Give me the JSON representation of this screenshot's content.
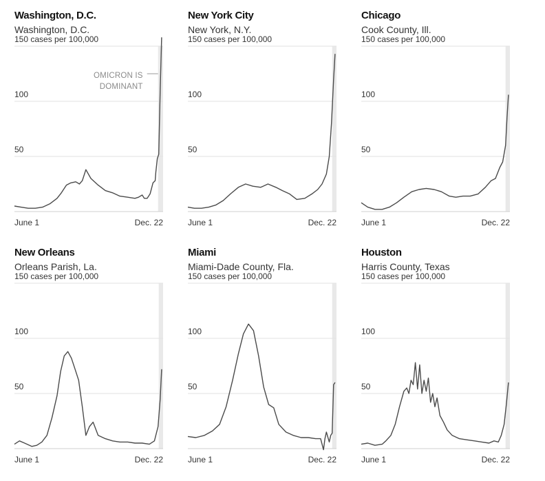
{
  "chart_data": [
    {
      "type": "line",
      "title": "Washington, D.C.",
      "subtitle": "Washington, D.C.",
      "y_unit": "cases per 100,000",
      "yticks": [
        {
          "value": 150,
          "label": "150 cases per 100,000"
        },
        {
          "value": 100,
          "label": "100"
        },
        {
          "value": 50,
          "label": "50"
        }
      ],
      "ylim": [
        0,
        160
      ],
      "xlim": [
        "2021-06-01",
        "2021-12-24"
      ],
      "xticks": [
        {
          "value": "2021-06-01",
          "label": "June 1"
        },
        {
          "value": "2021-12-22",
          "label": "Dec. 22"
        }
      ],
      "shaded_from": "2021-12-17",
      "annotation": {
        "lines": [
          "OMICRON IS",
          "DOMINANT"
        ]
      },
      "series": [
        {
          "x": [
            "2021-06-01",
            "2021-06-10",
            "2021-06-20",
            "2021-06-30",
            "2021-07-10",
            "2021-07-20",
            "2021-07-30",
            "2021-08-05",
            "2021-08-12",
            "2021-08-18",
            "2021-08-25",
            "2021-08-30",
            "2021-09-03",
            "2021-09-08",
            "2021-09-15",
            "2021-09-25",
            "2021-10-05",
            "2021-10-15",
            "2021-10-25",
            "2021-11-05",
            "2021-11-15",
            "2021-11-20",
            "2021-11-25",
            "2021-11-28",
            "2021-12-02",
            "2021-12-06",
            "2021-12-10",
            "2021-12-13",
            "2021-12-14",
            "2021-12-16",
            "2021-12-18",
            "2021-12-20",
            "2021-12-22"
          ],
          "y": [
            5,
            4,
            3,
            3,
            4,
            7,
            12,
            17,
            24,
            26,
            27,
            25,
            28,
            38,
            30,
            24,
            19,
            17,
            14,
            13,
            12,
            13,
            15,
            12,
            12,
            16,
            26,
            28,
            36,
            48,
            52,
            110,
            158
          ]
        }
      ]
    },
    {
      "type": "line",
      "title": "New York City",
      "subtitle": "New York, N.Y.",
      "y_unit": "cases per 100,000",
      "yticks": [
        {
          "value": 150,
          "label": "150 cases per 100,000"
        },
        {
          "value": 100,
          "label": "100"
        },
        {
          "value": 50,
          "label": "50"
        }
      ],
      "ylim": [
        0,
        160
      ],
      "xlim": [
        "2021-06-01",
        "2021-12-24"
      ],
      "xticks": [
        {
          "value": "2021-06-01",
          "label": "June 1"
        },
        {
          "value": "2021-12-22",
          "label": "Dec. 22"
        }
      ],
      "shaded_from": "2021-12-18",
      "series": [
        {
          "x": [
            "2021-06-01",
            "2021-06-10",
            "2021-06-20",
            "2021-06-30",
            "2021-07-10",
            "2021-07-20",
            "2021-07-30",
            "2021-08-10",
            "2021-08-20",
            "2021-08-30",
            "2021-09-10",
            "2021-09-20",
            "2021-10-01",
            "2021-10-10",
            "2021-10-20",
            "2021-10-30",
            "2021-11-10",
            "2021-11-20",
            "2021-11-28",
            "2021-12-04",
            "2021-12-10",
            "2021-12-14",
            "2021-12-17",
            "2021-12-20",
            "2021-12-22"
          ],
          "y": [
            4,
            3,
            3,
            4,
            6,
            10,
            16,
            22,
            25,
            23,
            22,
            25,
            22,
            19,
            16,
            11,
            12,
            16,
            20,
            25,
            34,
            50,
            80,
            120,
            143
          ]
        }
      ]
    },
    {
      "type": "line",
      "title": "Chicago",
      "subtitle": "Cook County, Ill.",
      "y_unit": "cases per 100,000",
      "yticks": [
        {
          "value": 150,
          "label": "150 cases per 100,000"
        },
        {
          "value": 100,
          "label": "100"
        },
        {
          "value": 50,
          "label": "50"
        }
      ],
      "ylim": [
        0,
        160
      ],
      "xlim": [
        "2021-06-01",
        "2021-12-24"
      ],
      "xticks": [
        {
          "value": "2021-06-01",
          "label": "June 1"
        },
        {
          "value": "2021-12-22",
          "label": "Dec. 22"
        }
      ],
      "shaded_from": "2021-12-18",
      "series": [
        {
          "x": [
            "2021-06-01",
            "2021-06-10",
            "2021-06-20",
            "2021-06-30",
            "2021-07-10",
            "2021-07-20",
            "2021-07-30",
            "2021-08-10",
            "2021-08-20",
            "2021-08-30",
            "2021-09-10",
            "2021-09-20",
            "2021-10-01",
            "2021-10-10",
            "2021-10-20",
            "2021-10-30",
            "2021-11-10",
            "2021-11-20",
            "2021-11-28",
            "2021-12-04",
            "2021-12-10",
            "2021-12-14",
            "2021-12-18",
            "2021-12-20",
            "2021-12-22"
          ],
          "y": [
            8,
            4,
            2,
            2,
            4,
            8,
            13,
            18,
            20,
            21,
            20,
            18,
            14,
            13,
            14,
            14,
            16,
            22,
            28,
            30,
            40,
            45,
            60,
            85,
            106
          ]
        }
      ]
    },
    {
      "type": "line",
      "title": "New Orleans",
      "subtitle": "Orleans Parish, La.",
      "y_unit": "cases per 100,000",
      "yticks": [
        {
          "value": 150,
          "label": "150 cases per 100,000"
        },
        {
          "value": 100,
          "label": "100"
        },
        {
          "value": 50,
          "label": "50"
        }
      ],
      "ylim": [
        0,
        160
      ],
      "xlim": [
        "2021-06-01",
        "2021-12-24"
      ],
      "xticks": [
        {
          "value": "2021-06-01",
          "label": "June 1"
        },
        {
          "value": "2021-12-22",
          "label": "Dec. 22"
        }
      ],
      "shaded_from": "2021-12-18",
      "series": [
        {
          "x": [
            "2021-06-01",
            "2021-06-08",
            "2021-06-15",
            "2021-06-25",
            "2021-07-02",
            "2021-07-09",
            "2021-07-16",
            "2021-07-23",
            "2021-07-30",
            "2021-08-04",
            "2021-08-09",
            "2021-08-14",
            "2021-08-19",
            "2021-08-24",
            "2021-08-29",
            "2021-09-03",
            "2021-09-08",
            "2021-09-13",
            "2021-09-18",
            "2021-09-25",
            "2021-10-05",
            "2021-10-15",
            "2021-10-25",
            "2021-11-05",
            "2021-11-15",
            "2021-11-25",
            "2021-12-05",
            "2021-12-12",
            "2021-12-17",
            "2021-12-20",
            "2021-12-22"
          ],
          "y": [
            4,
            7,
            5,
            2,
            3,
            6,
            12,
            28,
            48,
            70,
            84,
            88,
            82,
            72,
            62,
            38,
            12,
            20,
            24,
            12,
            9,
            7,
            6,
            6,
            5,
            5,
            4,
            7,
            20,
            45,
            72
          ]
        }
      ]
    },
    {
      "type": "line",
      "title": "Miami",
      "subtitle": "Miami-Dade County, Fla.",
      "y_unit": "cases per 100,000",
      "yticks": [
        {
          "value": 150,
          "label": "150 cases per 100,000"
        },
        {
          "value": 100,
          "label": "100"
        },
        {
          "value": 50,
          "label": "50"
        }
      ],
      "ylim": [
        0,
        160
      ],
      "xlim": [
        "2021-06-01",
        "2021-12-24"
      ],
      "xticks": [
        {
          "value": "2021-06-01",
          "label": "June 1"
        },
        {
          "value": "2021-12-22",
          "label": "Dec. 22"
        }
      ],
      "shaded_from": "2021-12-18",
      "series": [
        {
          "x": [
            "2021-06-01",
            "2021-06-12",
            "2021-06-24",
            "2021-07-05",
            "2021-07-15",
            "2021-07-24",
            "2021-08-02",
            "2021-08-10",
            "2021-08-17",
            "2021-08-24",
            "2021-08-31",
            "2021-09-07",
            "2021-09-14",
            "2021-09-21",
            "2021-09-28",
            "2021-10-05",
            "2021-10-15",
            "2021-10-25",
            "2021-11-05",
            "2021-11-15",
            "2021-11-25",
            "2021-12-02",
            "2021-12-06",
            "2021-12-08",
            "2021-12-10",
            "2021-12-14",
            "2021-12-16",
            "2021-12-18",
            "2021-12-20",
            "2021-12-22"
          ],
          "y": [
            11,
            10,
            12,
            16,
            22,
            38,
            62,
            86,
            104,
            113,
            107,
            84,
            56,
            40,
            37,
            22,
            15,
            12,
            10,
            10,
            9,
            9,
            -1,
            9,
            15,
            6,
            12,
            14,
            58,
            60
          ]
        }
      ]
    },
    {
      "type": "line",
      "title": "Houston",
      "subtitle": "Harris County, Texas",
      "y_unit": "cases per 100,000",
      "yticks": [
        {
          "value": 150,
          "label": "150 cases per 100,000"
        },
        {
          "value": 100,
          "label": "100"
        },
        {
          "value": 50,
          "label": "50"
        }
      ],
      "ylim": [
        0,
        160
      ],
      "xlim": [
        "2021-06-01",
        "2021-12-24"
      ],
      "xticks": [
        {
          "value": "2021-06-01",
          "label": "June 1"
        },
        {
          "value": "2021-12-22",
          "label": "Dec. 22"
        }
      ],
      "shaded_from": "2021-12-18",
      "series": [
        {
          "x": [
            "2021-06-01",
            "2021-06-10",
            "2021-06-20",
            "2021-06-30",
            "2021-07-05",
            "2021-07-12",
            "2021-07-18",
            "2021-07-24",
            "2021-07-30",
            "2021-08-03",
            "2021-08-06",
            "2021-08-09",
            "2021-08-12",
            "2021-08-15",
            "2021-08-18",
            "2021-08-21",
            "2021-08-24",
            "2021-08-27",
            "2021-08-30",
            "2021-09-02",
            "2021-09-05",
            "2021-09-08",
            "2021-09-11",
            "2021-09-14",
            "2021-09-18",
            "2021-09-23",
            "2021-09-28",
            "2021-10-05",
            "2021-10-15",
            "2021-10-25",
            "2021-11-05",
            "2021-11-15",
            "2021-11-25",
            "2021-12-02",
            "2021-12-08",
            "2021-12-12",
            "2021-12-16",
            "2021-12-19",
            "2021-12-22"
          ],
          "y": [
            4,
            5,
            3,
            4,
            7,
            12,
            22,
            38,
            52,
            55,
            50,
            62,
            58,
            78,
            54,
            76,
            50,
            62,
            52,
            64,
            42,
            50,
            38,
            46,
            30,
            24,
            17,
            12,
            9,
            8,
            7,
            6,
            5,
            7,
            6,
            12,
            22,
            40,
            60
          ]
        }
      ]
    }
  ]
}
